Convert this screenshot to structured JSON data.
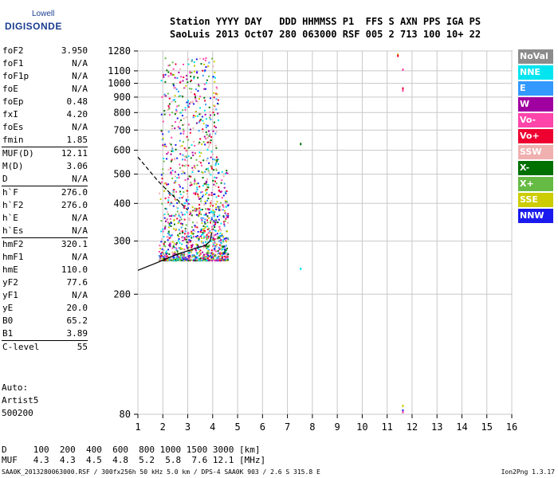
{
  "logo": {
    "top": "Lowell",
    "bottom": "DIGISONDE"
  },
  "header": {
    "line1": "Station YYYY DAY   DDD HHMMSS P1  FFS S AXN PPS IGA PS",
    "line2": "SaoLuis 2013 Oct07 280 063000 RSF 005 2 713 100 10+ 22"
  },
  "parameters": [
    {
      "key": "foF2",
      "value": "3.950",
      "sep": false
    },
    {
      "key": "foF1",
      "value": "N/A",
      "sep": false
    },
    {
      "key": "foF1p",
      "value": "N/A",
      "sep": false
    },
    {
      "key": "foE",
      "value": "N/A",
      "sep": false
    },
    {
      "key": "foEp",
      "value": "0.48",
      "sep": false
    },
    {
      "key": "fxI",
      "value": "4.20",
      "sep": false
    },
    {
      "key": "foEs",
      "value": "N/A",
      "sep": false
    },
    {
      "key": "fmin",
      "value": "1.85",
      "sep": false
    },
    {
      "key": "MUF(D)",
      "value": "12.11",
      "sep": true
    },
    {
      "key": "M(D)",
      "value": "3.06",
      "sep": false
    },
    {
      "key": "D",
      "value": "N/A",
      "sep": false
    },
    {
      "key": "h`F",
      "value": "276.0",
      "sep": true
    },
    {
      "key": "h`F2",
      "value": "276.0",
      "sep": false
    },
    {
      "key": "h`E",
      "value": "N/A",
      "sep": false
    },
    {
      "key": "h`Es",
      "value": "N/A",
      "sep": false
    },
    {
      "key": "hmF2",
      "value": "320.1",
      "sep": true
    },
    {
      "key": "hmF1",
      "value": "N/A",
      "sep": false
    },
    {
      "key": "hmE",
      "value": "110.0",
      "sep": false
    },
    {
      "key": "yF2",
      "value": "77.6",
      "sep": false
    },
    {
      "key": "yF1",
      "value": "N/A",
      "sep": false
    },
    {
      "key": "yE",
      "value": "20.0",
      "sep": false
    },
    {
      "key": "B0",
      "value": "65.2",
      "sep": false
    },
    {
      "key": "B1",
      "value": "3.89",
      "sep": false
    },
    {
      "key": "C-level",
      "value": "55",
      "sep": true
    }
  ],
  "auto": {
    "line1": "Auto:",
    "line2": "Artist5",
    "line3": "500200"
  },
  "muf_table": {
    "d_row": "D     100  200  400  600  800 1000 1500 3000 [km]",
    "muf_row": "MUF   4.3  4.3  4.5  4.8  5.2  5.8  7.6 12.1 [MHz]"
  },
  "footer": "SAA0K_2013280063000.RSF / 300fx256h 50 kHz 5.0 km / DPS-4 SAA0K 903 / 2.6 S 315.8 E",
  "version": "Ion2Png 1.3.17",
  "legend": [
    {
      "label": "NoVal",
      "color": "#8c8c8c"
    },
    {
      "label": "NNE",
      "color": "#00e5f0"
    },
    {
      "label": "E",
      "color": "#3399ff"
    },
    {
      "label": "W",
      "color": "#a000a0"
    },
    {
      "label": "Vo-",
      "color": "#ff44aa"
    },
    {
      "label": "Vo+",
      "color": "#ee0030"
    },
    {
      "label": "SSW",
      "color": "#f0b0b0"
    },
    {
      "label": "X-",
      "color": "#007000"
    },
    {
      "label": "X+",
      "color": "#66bb44"
    },
    {
      "label": "SSE",
      "color": "#cccc00"
    },
    {
      "label": "NNW",
      "color": "#1a1aee"
    }
  ],
  "chart_data": {
    "type": "scatter",
    "title": "",
    "xlabel": "",
    "ylabel": "",
    "xlim": [
      1,
      16
    ],
    "ylim": [
      80,
      1280
    ],
    "xticks": [
      1,
      2,
      3,
      4,
      5,
      6,
      7,
      8,
      9,
      10,
      11,
      12,
      13,
      14,
      15,
      16
    ],
    "yticks": [
      80,
      200,
      300,
      400,
      500,
      600,
      700,
      800,
      900,
      1000,
      1100,
      1280
    ],
    "y_scale": "log",
    "grid": true,
    "legend_position": "right",
    "trace_region": {
      "freq_range": [
        1.8,
        4.6
      ],
      "height_range": [
        260,
        1220
      ]
    },
    "scattered_points": [
      {
        "x": 7.5,
        "y": 635,
        "color": "#007000"
      },
      {
        "x": 7.5,
        "y": 245,
        "color": "#00e5f0"
      },
      {
        "x": 11.4,
        "y": 1255,
        "color": "#cccc00"
      },
      {
        "x": 11.4,
        "y": 1245,
        "color": "#ee0030"
      },
      {
        "x": 11.6,
        "y": 1120,
        "color": "#ff44aa"
      },
      {
        "x": 11.6,
        "y": 970,
        "color": "#ee0030"
      },
      {
        "x": 11.6,
        "y": 955,
        "color": "#ff44aa"
      },
      {
        "x": 11.6,
        "y": 86,
        "color": "#cccc00"
      },
      {
        "x": 11.6,
        "y": 83,
        "color": "#1a1aee"
      },
      {
        "x": 11.6,
        "y": 82,
        "color": "#ff44aa"
      }
    ],
    "profile_solid": [
      [
        1.0,
        240
      ],
      [
        1.8,
        255
      ],
      [
        2.5,
        270
      ],
      [
        3.2,
        282
      ],
      [
        3.7,
        290
      ],
      [
        3.9,
        300
      ],
      [
        3.96,
        320
      ]
    ],
    "profile_dashed": [
      [
        1.0,
        570
      ],
      [
        1.4,
        520
      ],
      [
        1.8,
        475
      ],
      [
        2.2,
        440
      ],
      [
        2.6,
        410
      ],
      [
        3.0,
        380
      ]
    ]
  }
}
